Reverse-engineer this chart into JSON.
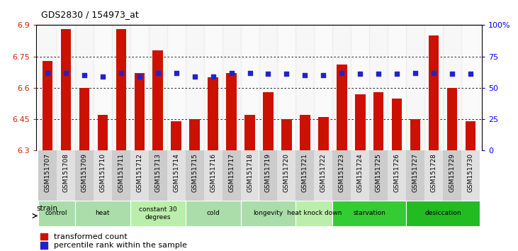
{
  "title": "GDS2830 / 154973_at",
  "samples": [
    "GSM151707",
    "GSM151708",
    "GSM151709",
    "GSM151710",
    "GSM151711",
    "GSM151712",
    "GSM151713",
    "GSM151714",
    "GSM151715",
    "GSM151716",
    "GSM151717",
    "GSM151718",
    "GSM151719",
    "GSM151720",
    "GSM151721",
    "GSM151722",
    "GSM151723",
    "GSM151724",
    "GSM151725",
    "GSM151726",
    "GSM151727",
    "GSM151728",
    "GSM151729",
    "GSM151730"
  ],
  "bar_values": [
    6.73,
    6.88,
    6.6,
    6.47,
    6.88,
    6.67,
    6.78,
    6.44,
    6.45,
    6.65,
    6.67,
    6.47,
    6.58,
    6.45,
    6.47,
    6.46,
    6.71,
    6.57,
    6.58,
    6.55,
    6.45,
    6.85,
    6.6,
    6.44
  ],
  "dot_values": [
    62,
    62,
    60,
    59,
    62,
    59,
    62,
    62,
    59,
    59,
    62,
    62,
    61,
    61,
    60,
    60,
    62,
    61,
    61,
    61,
    62,
    62,
    61,
    61
  ],
  "bar_color": "#cc1100",
  "dot_color": "#2222cc",
  "ylim_left": [
    6.3,
    6.9
  ],
  "ylim_right": [
    0,
    100
  ],
  "yticks_left": [
    6.3,
    6.45,
    6.6,
    6.75,
    6.9
  ],
  "ytick_labels_left": [
    "6.3",
    "6.45",
    "6.6",
    "6.75",
    "6.9"
  ],
  "yticks_right": [
    0,
    25,
    50,
    75,
    100
  ],
  "ytick_labels_right": [
    "0",
    "25",
    "50",
    "75",
    "100%"
  ],
  "grid_values": [
    6.45,
    6.6,
    6.75
  ],
  "groups": [
    {
      "label": "control",
      "start": 0,
      "end": 2,
      "color": "#aaddaa"
    },
    {
      "label": "heat",
      "start": 2,
      "end": 5,
      "color": "#aaddaa"
    },
    {
      "label": "constant 30\ndegrees",
      "start": 5,
      "end": 8,
      "color": "#bbeeaa"
    },
    {
      "label": "cold",
      "start": 8,
      "end": 11,
      "color": "#aaddaa"
    },
    {
      "label": "longevity",
      "start": 11,
      "end": 14,
      "color": "#aaddaa"
    },
    {
      "label": "heat knock down",
      "start": 14,
      "end": 16,
      "color": "#bbeeaa"
    },
    {
      "label": "starvation",
      "start": 16,
      "end": 20,
      "color": "#33cc33"
    },
    {
      "label": "desiccation",
      "start": 20,
      "end": 24,
      "color": "#22bb22"
    }
  ],
  "legend_bar_label": "transformed count",
  "legend_dot_label": "percentile rank within the sample",
  "strain_label": "strain"
}
